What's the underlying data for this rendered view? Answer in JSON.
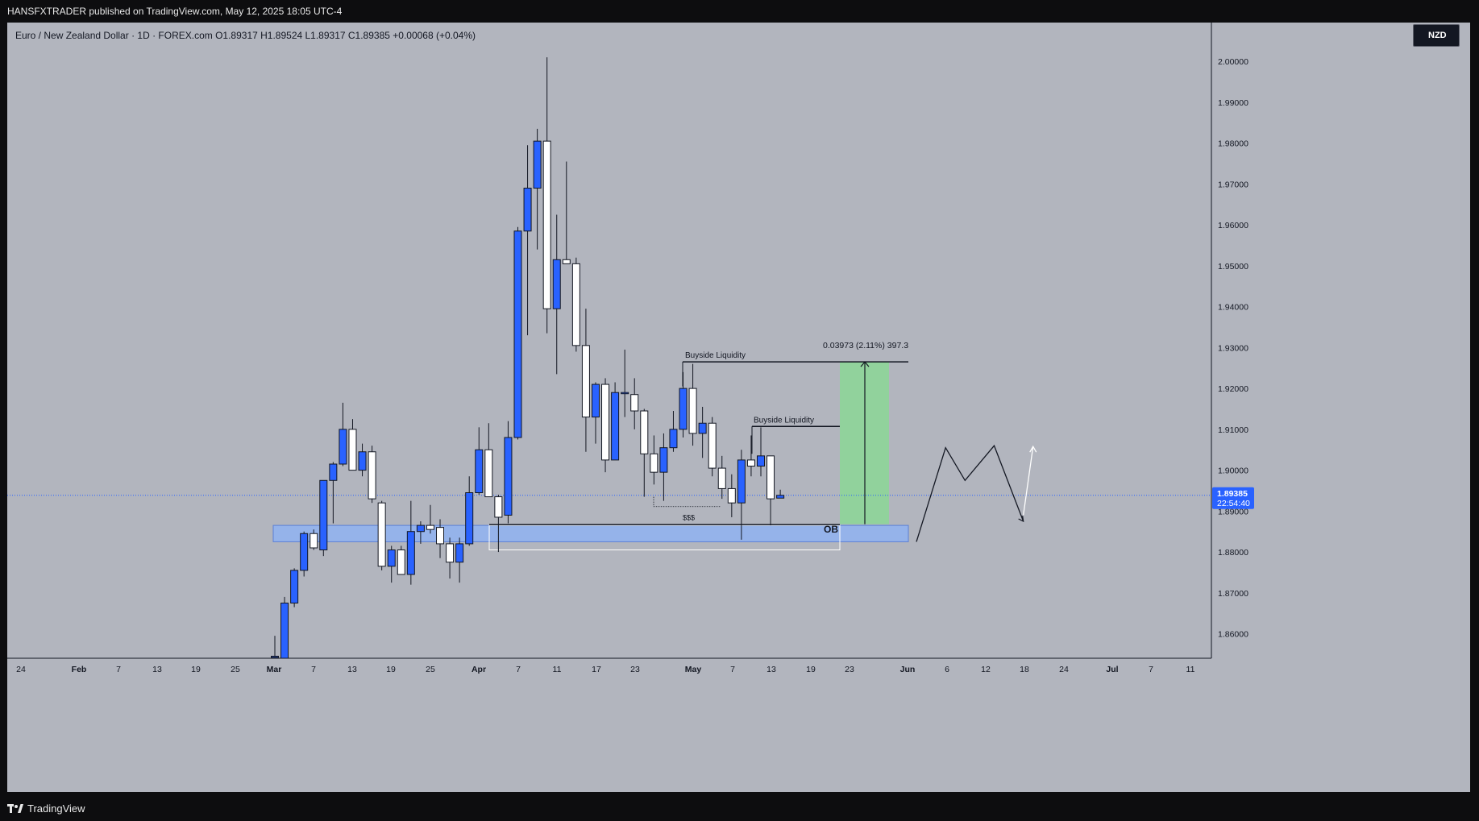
{
  "header": {
    "publisher_line": "HANSFXTRADER published on TradingView.com, May 12, 2025 18:05 UTC-4"
  },
  "legend": {
    "text": "Euro / New Zealand Dollar · 1D · FOREX.com  O1.89317  H1.89524  L1.89317  C1.89385  +0.00068 (+0.04%)"
  },
  "currency_button": {
    "label": "NZD"
  },
  "footer": {
    "brand": "TradingView"
  },
  "colors": {
    "background": "#b2b5be",
    "up_candle": "#2962ff",
    "down_candle": "#ffffff",
    "candle_border": "#131722",
    "ob_zone": "#8fb3f2",
    "target_zone": "#8fd49a",
    "price_label": "#2962ff"
  },
  "chart_data": {
    "type": "candlestick",
    "symbol": "EUR/NZD",
    "timeframe": "1D",
    "ylim": [
      1.854,
      2.0095
    ],
    "y_ticks": [
      1.86,
      1.87,
      1.88,
      1.89,
      1.9,
      1.91,
      1.92,
      1.93,
      1.94,
      1.95,
      1.96,
      1.97,
      1.98,
      1.99,
      2.0
    ],
    "y_tick_labels": [
      "1.86000",
      "1.87000",
      "1.88000",
      "1.89000",
      "1.90000",
      "1.91000",
      "1.92000",
      "1.93000",
      "1.94000",
      "1.95000",
      "1.96000",
      "1.97000",
      "1.98000",
      "1.99000",
      "2.00000"
    ],
    "x_ticks": [
      {
        "label": "24",
        "day": -12
      },
      {
        "label": "Feb",
        "day": -8
      },
      {
        "label": "7",
        "day": -4
      },
      {
        "label": "13",
        "day": 0
      },
      {
        "label": "19",
        "day": 4
      },
      {
        "label": "25",
        "day": 8
      },
      {
        "label": "Mar",
        "day": 12
      },
      {
        "label": "7",
        "day": 16
      },
      {
        "label": "13",
        "day": 20
      },
      {
        "label": "19",
        "day": 24
      },
      {
        "label": "25",
        "day": 28
      },
      {
        "label": "Apr",
        "day": 33
      },
      {
        "label": "7",
        "day": 37
      },
      {
        "label": "11",
        "day": 41
      },
      {
        "label": "17",
        "day": 45
      },
      {
        "label": "23",
        "day": 49
      },
      {
        "label": "May",
        "day": 54
      },
      {
        "label": "7",
        "day": 58
      },
      {
        "label": "13",
        "day": 62
      },
      {
        "label": "19",
        "day": 66
      },
      {
        "label": "23",
        "day": 70
      },
      {
        "label": "Jun",
        "day": 76
      },
      {
        "label": "6",
        "day": 80
      },
      {
        "label": "12",
        "day": 84
      },
      {
        "label": "18",
        "day": 88
      },
      {
        "label": "24",
        "day": 92
      },
      {
        "label": "Jul",
        "day": 97
      },
      {
        "label": "7",
        "day": 101
      },
      {
        "label": "11",
        "day": 105
      }
    ],
    "candles": [
      {
        "date": "Feb 28",
        "o": 1.8545,
        "h": 1.8595,
        "l": 1.8535,
        "c": 1.8545
      },
      {
        "date": "Mar 3",
        "o": 1.854,
        "h": 1.869,
        "l": 1.8535,
        "c": 1.8675
      },
      {
        "date": "Mar 4",
        "o": 1.8675,
        "h": 1.876,
        "l": 1.8665,
        "c": 1.8755
      },
      {
        "date": "Mar 5",
        "o": 1.8755,
        "h": 1.885,
        "l": 1.874,
        "c": 1.8845
      },
      {
        "date": "Mar 6",
        "o": 1.8845,
        "h": 1.8855,
        "l": 1.8805,
        "c": 1.881
      },
      {
        "date": "Mar 7",
        "o": 1.8805,
        "h": 1.8975,
        "l": 1.879,
        "c": 1.8975
      },
      {
        "date": "Mar 10",
        "o": 1.8975,
        "h": 1.902,
        "l": 1.887,
        "c": 1.9015
      },
      {
        "date": "Mar 11",
        "o": 1.9015,
        "h": 1.9165,
        "l": 1.901,
        "c": 1.91
      },
      {
        "date": "Mar 12",
        "o": 1.91,
        "h": 1.9125,
        "l": 1.9,
        "c": 1.9
      },
      {
        "date": "Mar 13",
        "o": 1.9,
        "h": 1.9065,
        "l": 1.8985,
        "c": 1.9045
      },
      {
        "date": "Mar 14",
        "o": 1.9045,
        "h": 1.906,
        "l": 1.892,
        "c": 1.893
      },
      {
        "date": "Mar 17",
        "o": 1.892,
        "h": 1.8925,
        "l": 1.8755,
        "c": 1.8765
      },
      {
        "date": "Mar 18",
        "o": 1.8765,
        "h": 1.8815,
        "l": 1.8725,
        "c": 1.8805
      },
      {
        "date": "Mar 19",
        "o": 1.8805,
        "h": 1.8815,
        "l": 1.8745,
        "c": 1.8745
      },
      {
        "date": "Mar 20",
        "o": 1.8745,
        "h": 1.8925,
        "l": 1.872,
        "c": 1.885
      },
      {
        "date": "Mar 21",
        "o": 1.885,
        "h": 1.8875,
        "l": 1.882,
        "c": 1.8865
      },
      {
        "date": "Mar 24",
        "o": 1.8865,
        "h": 1.8915,
        "l": 1.8845,
        "c": 1.8855
      },
      {
        "date": "Mar 25",
        "o": 1.886,
        "h": 1.888,
        "l": 1.8785,
        "c": 1.882
      },
      {
        "date": "Mar 26",
        "o": 1.882,
        "h": 1.8835,
        "l": 1.8735,
        "c": 1.8775
      },
      {
        "date": "Mar 27",
        "o": 1.8775,
        "h": 1.8835,
        "l": 1.8725,
        "c": 1.882
      },
      {
        "date": "Mar 28",
        "o": 1.882,
        "h": 1.8985,
        "l": 1.8815,
        "c": 1.8945
      },
      {
        "date": "Mar 31",
        "o": 1.8945,
        "h": 1.9105,
        "l": 1.894,
        "c": 1.905
      },
      {
        "date": "Apr 1",
        "o": 1.905,
        "h": 1.9115,
        "l": 1.8935,
        "c": 1.8935
      },
      {
        "date": "Apr 2",
        "o": 1.8935,
        "h": 1.894,
        "l": 1.88,
        "c": 1.8885
      },
      {
        "date": "Apr 3",
        "o": 1.889,
        "h": 1.912,
        "l": 1.887,
        "c": 1.908
      },
      {
        "date": "Apr 4",
        "o": 1.908,
        "h": 1.9595,
        "l": 1.9075,
        "c": 1.9585
      },
      {
        "date": "Apr 7",
        "o": 1.9585,
        "h": 1.9795,
        "l": 1.933,
        "c": 1.969
      },
      {
        "date": "Apr 8",
        "o": 1.969,
        "h": 1.9835,
        "l": 1.954,
        "c": 1.9805
      },
      {
        "date": "Apr 9",
        "o": 1.9805,
        "h": 2.001,
        "l": 1.9335,
        "c": 1.9395
      },
      {
        "date": "Apr 10",
        "o": 1.9395,
        "h": 1.9625,
        "l": 1.9235,
        "c": 1.9515
      },
      {
        "date": "Apr 11",
        "o": 1.9515,
        "h": 1.9755,
        "l": 1.9505,
        "c": 1.9505
      },
      {
        "date": "Apr 14",
        "o": 1.9505,
        "h": 1.952,
        "l": 1.929,
        "c": 1.9305
      },
      {
        "date": "Apr 15",
        "o": 1.9305,
        "h": 1.9395,
        "l": 1.9045,
        "c": 1.913
      },
      {
        "date": "Apr 16",
        "o": 1.913,
        "h": 1.9215,
        "l": 1.9065,
        "c": 1.921
      },
      {
        "date": "Apr 17",
        "o": 1.921,
        "h": 1.9225,
        "l": 1.8995,
        "c": 1.9025
      },
      {
        "date": "Apr 18",
        "o": 1.9025,
        "h": 1.9215,
        "l": 1.9025,
        "c": 1.919
      },
      {
        "date": "Apr 21",
        "o": 1.919,
        "h": 1.9295,
        "l": 1.913,
        "c": 1.919
      },
      {
        "date": "Apr 22",
        "o": 1.9185,
        "h": 1.9225,
        "l": 1.91,
        "c": 1.9145
      },
      {
        "date": "Apr 23",
        "o": 1.9145,
        "h": 1.915,
        "l": 1.8935,
        "c": 1.904
      },
      {
        "date": "Apr 24",
        "o": 1.904,
        "h": 1.9085,
        "l": 1.8965,
        "c": 1.8995
      },
      {
        "date": "Apr 25",
        "o": 1.8995,
        "h": 1.909,
        "l": 1.8925,
        "c": 1.9055
      },
      {
        "date": "Apr 28",
        "o": 1.9055,
        "h": 1.9145,
        "l": 1.9045,
        "c": 1.91
      },
      {
        "date": "Apr 29",
        "o": 1.91,
        "h": 1.924,
        "l": 1.908,
        "c": 1.92
      },
      {
        "date": "Apr 30",
        "o": 1.92,
        "h": 1.926,
        "l": 1.906,
        "c": 1.909
      },
      {
        "date": "May 1",
        "o": 1.909,
        "h": 1.9155,
        "l": 1.903,
        "c": 1.9115
      },
      {
        "date": "May 2",
        "o": 1.9115,
        "h": 1.913,
        "l": 1.8985,
        "c": 1.9005
      },
      {
        "date": "May 5",
        "o": 1.9005,
        "h": 1.9035,
        "l": 1.893,
        "c": 1.8955
      },
      {
        "date": "May 6",
        "o": 1.8955,
        "h": 1.899,
        "l": 1.8885,
        "c": 1.892
      },
      {
        "date": "May 7",
        "o": 1.892,
        "h": 1.905,
        "l": 1.883,
        "c": 1.9025
      },
      {
        "date": "May 8",
        "o": 1.9025,
        "h": 1.9085,
        "l": 1.8985,
        "c": 1.901
      },
      {
        "date": "May 9",
        "o": 1.901,
        "h": 1.9105,
        "l": 1.8985,
        "c": 1.9035
      },
      {
        "date": "May 12",
        "o": 1.9035,
        "h": 1.9035,
        "l": 1.8865,
        "c": 1.893
      },
      {
        "date": "May 13",
        "o": 1.89317,
        "h": 1.89524,
        "l": 1.89317,
        "c": 1.89385
      }
    ],
    "last_price": {
      "value": 1.89385,
      "label": "1.89385",
      "countdown": "22:54:40"
    },
    "annotations": [
      {
        "type": "text",
        "text": "Buyside Liquidity",
        "price": 1.9265
      },
      {
        "type": "text",
        "text": "Buyside Liquidity",
        "price": 1.9107
      },
      {
        "type": "text",
        "text": "$$$",
        "price": 1.89
      },
      {
        "type": "text",
        "text": "OB",
        "price": 1.8855
      },
      {
        "type": "measure",
        "text": "0.03973 (2.11%) 397.3",
        "from": 1.8868,
        "to": 1.9265
      },
      {
        "type": "zone",
        "name": "order-block",
        "from": 1.8825,
        "to": 1.8865
      },
      {
        "type": "zone",
        "name": "target",
        "from": 1.8868,
        "to": 1.9265
      }
    ],
    "projection_path": [
      {
        "day": 70,
        "price": 1.8825
      },
      {
        "day": 73,
        "price": 1.9055
      },
      {
        "day": 75,
        "price": 1.8975
      },
      {
        "day": 78,
        "price": 1.906
      },
      {
        "day": 81,
        "price": 1.8875
      }
    ],
    "projection_arrow": [
      {
        "day": 81,
        "price": 1.889
      },
      {
        "day": 82,
        "price": 1.9058
      }
    ]
  }
}
